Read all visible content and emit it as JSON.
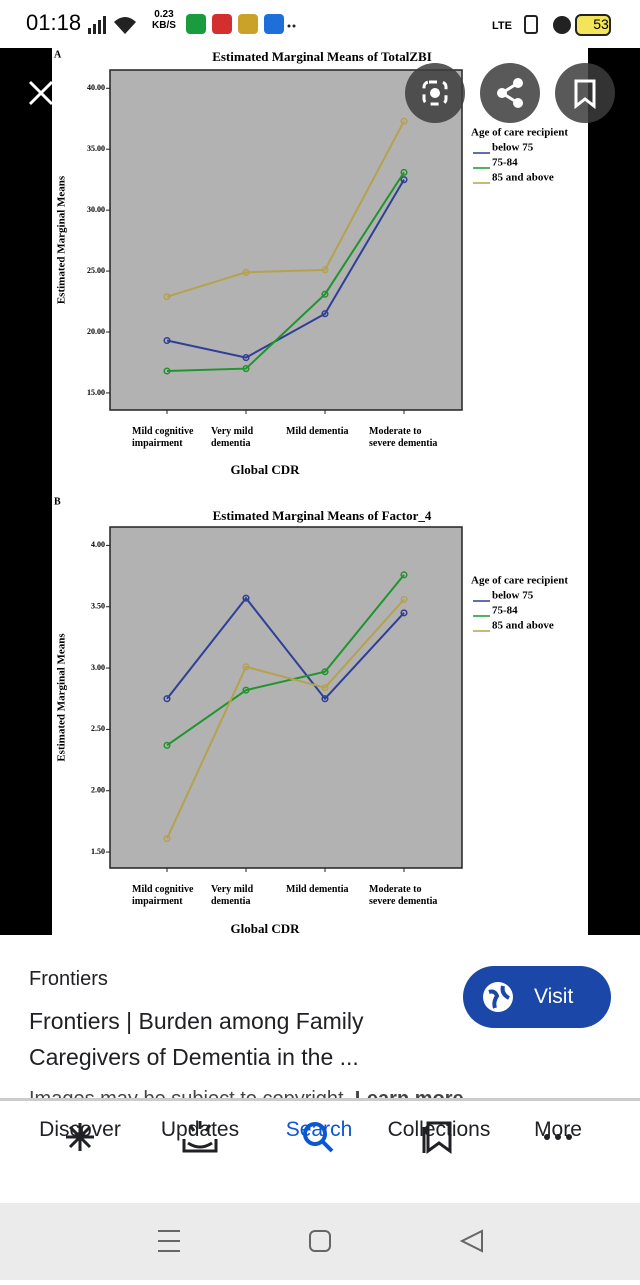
{
  "status_bar": {
    "time": "01:18",
    "speed": "0.23",
    "speed_unit": "KB/S",
    "battery": "53"
  },
  "chart_data": [
    {
      "type": "line",
      "panel": "A",
      "title": "Estimated Marginal Means of TotalZBI",
      "y_label": "Estimated Marginal Means",
      "x_label": "Global CDR",
      "legend_title": "Age of care recipient",
      "categories": [
        "Mild cognitive impairment",
        "Very mild dementia",
        "Mild dementia",
        "Moderate to severe dementia"
      ],
      "series": [
        {
          "name": "below 75",
          "color": "#2e3f96",
          "values": [
            19.3,
            17.9,
            21.5,
            32.5
          ]
        },
        {
          "name": "75-84",
          "color": "#1f952c",
          "values": [
            16.8,
            17.0,
            23.1,
            33.1
          ]
        },
        {
          "name": "85 and above",
          "color": "#b5a24e",
          "values": [
            22.9,
            24.9,
            25.1,
            37.3
          ]
        }
      ],
      "ylim": [
        13.6,
        41.5
      ],
      "yticks": [
        {
          "value": 15,
          "label": "15.00"
        },
        {
          "value": 20,
          "label": "20.00"
        },
        {
          "value": 25,
          "label": "25.00"
        },
        {
          "value": 30,
          "label": "30.00"
        },
        {
          "value": 35,
          "label": "35.00"
        },
        {
          "value": 40,
          "label": "40.00"
        }
      ]
    },
    {
      "type": "line",
      "panel": "B",
      "title": "Estimated Marginal Means of Factor_4",
      "y_label": "Estimated Marginal Means",
      "x_label": "Global CDR",
      "legend_title": "Age of care recipient",
      "categories": [
        "Mild cognitive impairment",
        "Very mild dementia",
        "Mild dementia",
        "Moderate to severe dementia"
      ],
      "series": [
        {
          "name": "below 75",
          "color": "#2e3f96",
          "values": [
            2.75,
            3.57,
            2.75,
            3.45
          ]
        },
        {
          "name": "75-84",
          "color": "#1f952c",
          "values": [
            2.37,
            2.82,
            2.97,
            3.76
          ]
        },
        {
          "name": "85 and above",
          "color": "#b5a24e",
          "values": [
            1.61,
            3.01,
            2.84,
            3.56
          ]
        }
      ],
      "ylim": [
        1.37,
        4.15
      ],
      "yticks": [
        {
          "value": 1.5,
          "label": "1.50"
        },
        {
          "value": 2,
          "label": "2.00"
        },
        {
          "value": 2.5,
          "label": "2.50"
        },
        {
          "value": 3,
          "label": "3.00"
        },
        {
          "value": 3.5,
          "label": "3.50"
        },
        {
          "value": 4,
          "label": "4.00"
        }
      ]
    }
  ],
  "result": {
    "source": "Frontiers",
    "title": "Frontiers | Burden among Family Caregivers of Dementia in the ...",
    "button": "Visit",
    "copyright": "Images may be subject to copyright.",
    "learn_more": "Learn more"
  },
  "nav": {
    "items": [
      "Discover",
      "Updates",
      "Search",
      "Collections",
      "More"
    ]
  }
}
